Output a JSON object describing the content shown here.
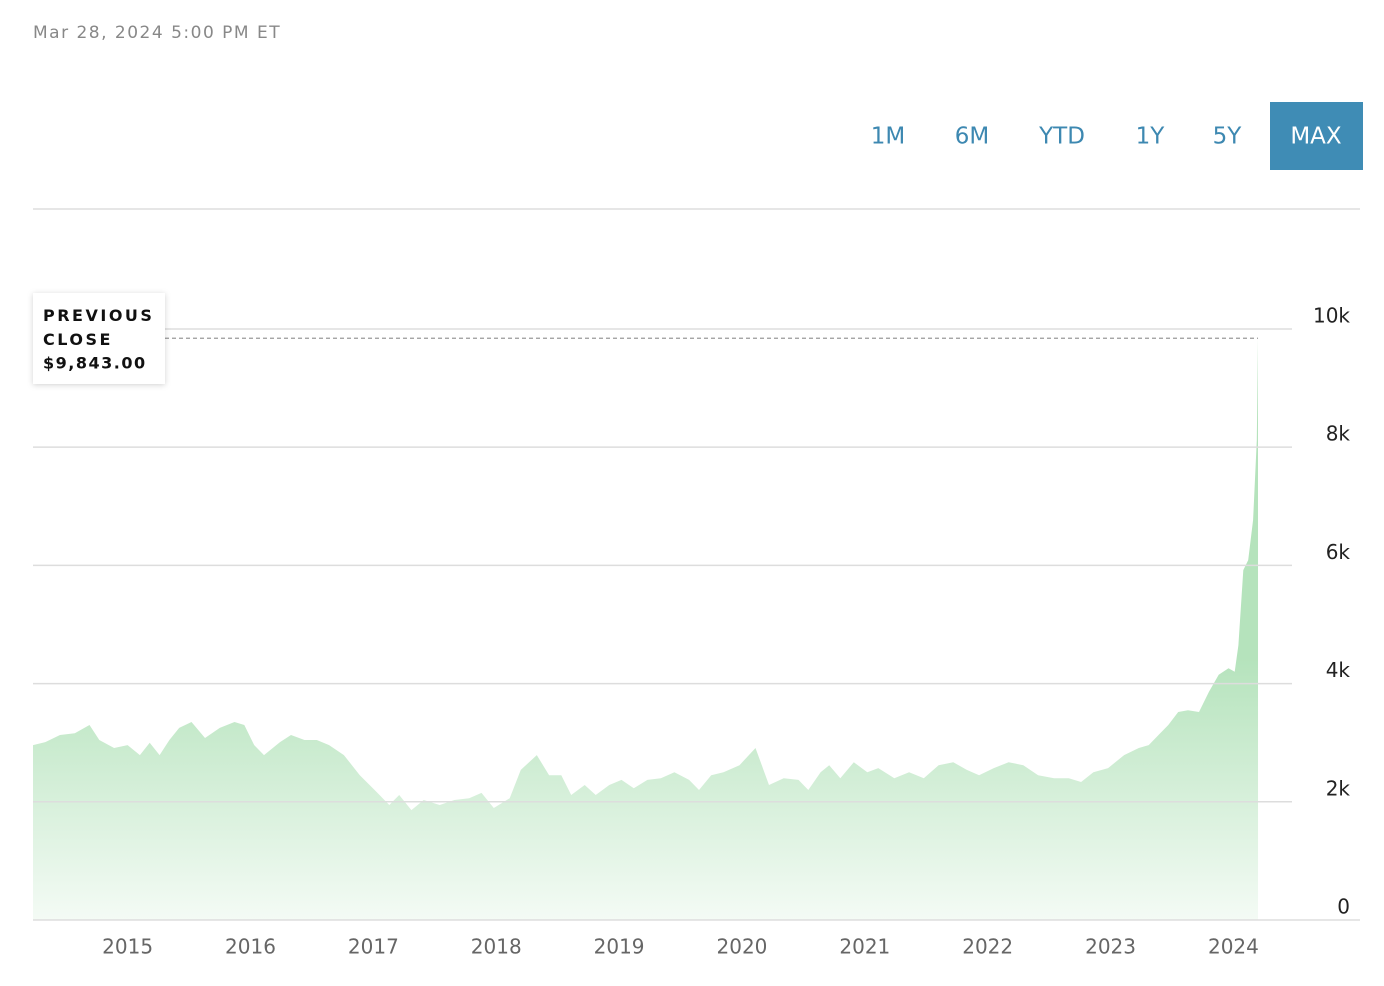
{
  "timestamp": "Mar 28, 2024 5:00 PM ET",
  "range_buttons": [
    "1M",
    "6M",
    "YTD",
    "1Y",
    "5Y",
    "MAX"
  ],
  "selected_range": "MAX",
  "chart_data": {
    "type": "area",
    "color": "#b5e3bc",
    "x": [
      2014.23,
      2014.33,
      2014.45,
      2014.57,
      2014.69,
      2014.77,
      2014.89,
      2015.0,
      2015.1,
      2015.18,
      2015.26,
      2015.34,
      2015.42,
      2015.52,
      2015.63,
      2015.75,
      2015.87,
      2015.95,
      2016.03,
      2016.11,
      2016.24,
      2016.33,
      2016.44,
      2016.54,
      2016.64,
      2016.76,
      2016.89,
      2017.01,
      2017.13,
      2017.21,
      2017.31,
      2017.41,
      2017.54,
      2017.66,
      2017.78,
      2017.88,
      2017.98,
      2018.11,
      2018.2,
      2018.33,
      2018.43,
      2018.53,
      2018.61,
      2018.72,
      2018.81,
      2018.92,
      2019.02,
      2019.12,
      2019.23,
      2019.34,
      2019.45,
      2019.57,
      2019.65,
      2019.75,
      2019.85,
      2019.98,
      2020.11,
      2020.22,
      2020.34,
      2020.46,
      2020.54,
      2020.64,
      2020.71,
      2020.8,
      2020.91,
      2021.02,
      2021.11,
      2021.24,
      2021.36,
      2021.48,
      2021.6,
      2021.72,
      2021.83,
      2021.93,
      2022.05,
      2022.17,
      2022.29,
      2022.41,
      2022.54,
      2022.66,
      2022.76,
      2022.86,
      2022.98,
      2023.11,
      2023.23,
      2023.31,
      2023.39,
      2023.47,
      2023.55,
      2023.63,
      2023.72,
      2023.8,
      2023.88,
      2023.96,
      2024.01,
      2024.04,
      2024.08,
      2024.12,
      2024.16,
      2024.19,
      2024.2
    ],
    "values": [
      2960,
      3010,
      3130,
      3160,
      3300,
      3045,
      2910,
      2960,
      2790,
      3000,
      2790,
      3045,
      3250,
      3350,
      3080,
      3250,
      3350,
      3300,
      2960,
      2790,
      3010,
      3130,
      3045,
      3045,
      2960,
      2790,
      2450,
      2200,
      1945,
      2115,
      1860,
      2030,
      1945,
      2030,
      2060,
      2150,
      1895,
      2060,
      2540,
      2790,
      2450,
      2450,
      2115,
      2285,
      2115,
      2285,
      2370,
      2230,
      2370,
      2400,
      2500,
      2370,
      2200,
      2450,
      2500,
      2620,
      2910,
      2285,
      2400,
      2370,
      2200,
      2500,
      2620,
      2400,
      2670,
      2500,
      2570,
      2400,
      2500,
      2400,
      2620,
      2670,
      2540,
      2450,
      2570,
      2670,
      2620,
      2450,
      2400,
      2400,
      2335,
      2500,
      2570,
      2790,
      2910,
      2960,
      3130,
      3300,
      3520,
      3550,
      3520,
      3860,
      4150,
      4260,
      4200,
      4650,
      5920,
      6090,
      6770,
      8120,
      9843
    ],
    "xlim": [
      2014.23,
      2025.03
    ],
    "xticks": [
      2015,
      2016,
      2017,
      2018,
      2019,
      2020,
      2021,
      2022,
      2023,
      2024
    ],
    "ylim": [
      0,
      12030
    ],
    "yticks": [
      0,
      {
        "value": 2000,
        "label": "2k"
      },
      {
        "value": 4000,
        "label": "4k"
      },
      {
        "value": 6000,
        "label": "6k"
      },
      {
        "value": 8000,
        "label": "8k"
      },
      {
        "value": 10000,
        "label": "10k"
      }
    ],
    "grid": true,
    "previous_close": {
      "label": "PREVIOUS CLOSE",
      "value": 9843,
      "value_label": "$9,843.00"
    }
  }
}
